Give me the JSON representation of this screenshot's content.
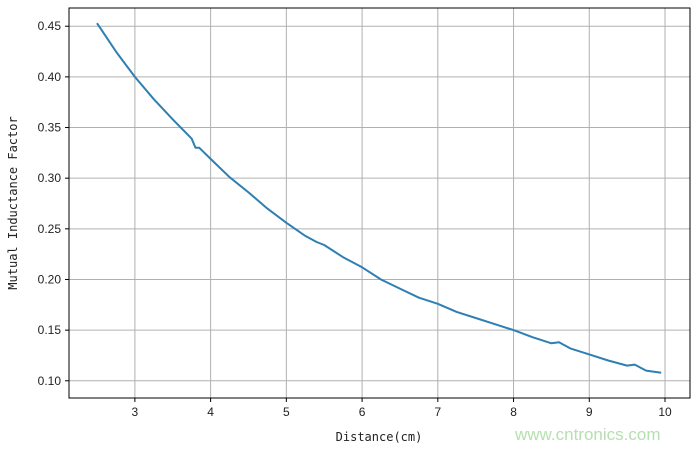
{
  "chart_data": {
    "type": "line",
    "xlabel": "Distance(cm)",
    "ylabel": "Mutual Inductance Factor",
    "xlim": [
      2.13,
      10.33
    ],
    "ylim": [
      0.083,
      0.468
    ],
    "grid": true,
    "xticks": [
      "3",
      "4",
      "5",
      "6",
      "7",
      "8",
      "9",
      "10"
    ],
    "yticks": [
      "0.10",
      "0.15",
      "0.20",
      "0.25",
      "0.30",
      "0.35",
      "0.40",
      "0.45"
    ],
    "line_color": "#2e7fb3",
    "series": [
      {
        "x": [
          2.5,
          2.75,
          3.0,
          3.25,
          3.5,
          3.75,
          3.8,
          3.85,
          4.0,
          4.25,
          4.5,
          4.75,
          5.0,
          5.25,
          5.4,
          5.5,
          5.75,
          6.0,
          6.25,
          6.5,
          6.75,
          7.0,
          7.25,
          7.5,
          7.75,
          8.0,
          8.25,
          8.5,
          8.6,
          8.75,
          9.0,
          9.25,
          9.5,
          9.6,
          9.75,
          9.95
        ],
        "y": [
          0.453,
          0.425,
          0.4,
          0.378,
          0.358,
          0.339,
          0.33,
          0.33,
          0.319,
          0.301,
          0.286,
          0.27,
          0.256,
          0.243,
          0.237,
          0.234,
          0.222,
          0.212,
          0.2,
          0.191,
          0.182,
          0.176,
          0.168,
          0.162,
          0.156,
          0.15,
          0.143,
          0.137,
          0.138,
          0.132,
          0.126,
          0.12,
          0.115,
          0.116,
          0.11,
          0.108
        ]
      }
    ]
  },
  "watermark": "www.cntronics.com"
}
